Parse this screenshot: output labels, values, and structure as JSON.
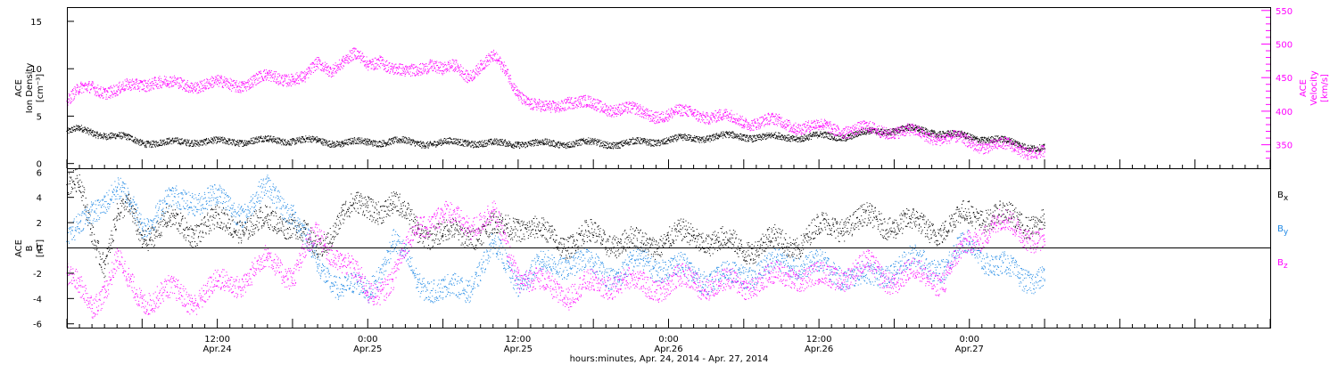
{
  "colors": {
    "black": "#000000",
    "magenta": "#ff00ff",
    "blue": "#1e88e5"
  },
  "xaxis": {
    "title": "hours:minutes, Apr. 24, 2014 - Apr. 27, 2014",
    "range_hours": [
      0,
      96
    ],
    "ticks": [
      {
        "hour": 12,
        "time": "12:00",
        "date": "Apr.24"
      },
      {
        "hour": 24,
        "time": "0:00",
        "date": "Apr.25"
      },
      {
        "hour": 36,
        "time": "12:00",
        "date": "Apr.25"
      },
      {
        "hour": 48,
        "time": "0:00",
        "date": "Apr.26"
      },
      {
        "hour": 60,
        "time": "12:00",
        "date": "Apr.26"
      },
      {
        "hour": 72,
        "time": "0:00",
        "date": "Apr.27"
      }
    ]
  },
  "chart_data": [
    {
      "type": "scatter",
      "panel": "top",
      "ylabel_left": [
        "ACE",
        "Ion Density",
        "[cm⁻³]"
      ],
      "ylabel_right": [
        "ACE",
        "Velocity",
        "[km/s]"
      ],
      "ylim_left": [
        -0.5,
        16.5
      ],
      "ylim_right": [
        315,
        555
      ],
      "yticks_left": [
        "0",
        "5",
        "10",
        "15"
      ],
      "yticks_right": [
        "350",
        "400",
        "450",
        "500",
        "550"
      ],
      "yticks_left_values": [
        0,
        5,
        10,
        15
      ],
      "yticks_right_values": [
        350,
        400,
        450,
        500,
        550
      ],
      "series": [
        {
          "axis": "left",
          "color": "#000000",
          "x": [
            0,
            1,
            2,
            3,
            4,
            5,
            6,
            8,
            10,
            12,
            14,
            16,
            18,
            20,
            22,
            24,
            26,
            28,
            30,
            32,
            34,
            36,
            38,
            40,
            42,
            44,
            46,
            48,
            50,
            52,
            54,
            56,
            58,
            60,
            62,
            64,
            66,
            67,
            68,
            69,
            70,
            71,
            72,
            73,
            74,
            75,
            76,
            77,
            78
          ],
          "y": [
            3.4,
            3.6,
            3.3,
            3.1,
            2.9,
            2.6,
            2.3,
            2.2,
            2.4,
            2.3,
            2.4,
            2.5,
            2.5,
            2.4,
            2.2,
            2.3,
            2.4,
            2.2,
            2.2,
            2.3,
            2.1,
            2.2,
            2.1,
            2.2,
            2.2,
            2.1,
            2.3,
            2.5,
            2.7,
            2.9,
            2.9,
            2.8,
            2.8,
            2.9,
            2.9,
            3.3,
            3.6,
            3.7,
            3.5,
            3.4,
            3.2,
            3.0,
            2.8,
            2.7,
            2.6,
            2.3,
            2.1,
            1.8,
            1.6
          ]
        },
        {
          "axis": "right",
          "color": "#ff00ff",
          "x": [
            0,
            1,
            2,
            3,
            4,
            5,
            6,
            7,
            8,
            10,
            12,
            14,
            16,
            18,
            19,
            20,
            21,
            22,
            23,
            24,
            25,
            26,
            27,
            28,
            29,
            30,
            31,
            32,
            33,
            34,
            35,
            36,
            37,
            38,
            39,
            40,
            41,
            42,
            44,
            46,
            48,
            50,
            52,
            54,
            56,
            58,
            60,
            62,
            64,
            66,
            68,
            70,
            72,
            74,
            76,
            78
          ],
          "y": [
            415,
            430,
            438,
            432,
            430,
            436,
            443,
            446,
            440,
            441,
            440,
            442,
            450,
            452,
            448,
            470,
            465,
            475,
            482,
            470,
            480,
            462,
            455,
            465,
            473,
            460,
            465,
            455,
            470,
            478,
            460,
            430,
            410,
            402,
            408,
            418,
            412,
            408,
            406,
            396,
            396,
            398,
            392,
            386,
            385,
            380,
            376,
            374,
            372,
            372,
            366,
            362,
            353,
            350,
            344,
            339
          ]
        }
      ]
    },
    {
      "type": "scatter",
      "panel": "bottom",
      "ylabel": [
        "ACE",
        "B",
        "[nT]"
      ],
      "ylim": [
        -6.3,
        6.3
      ],
      "yticks": [
        "-6",
        "-4",
        "-2",
        "0",
        "2",
        "4",
        "6"
      ],
      "ytick_values": [
        -6,
        -4,
        -2,
        0,
        2,
        4,
        6
      ],
      "legend": [
        {
          "name": "Bx",
          "label": "B",
          "sub": "x",
          "color": "#000000"
        },
        {
          "name": "By",
          "label": "B",
          "sub": "y",
          "color": "#1e88e5"
        },
        {
          "name": "Bz",
          "label": "B",
          "sub": "z",
          "color": "#ff00ff"
        }
      ],
      "series": [
        {
          "name": "Bx",
          "color": "#000000",
          "x": [
            0,
            1,
            2,
            3,
            4,
            5,
            6,
            8,
            10,
            12,
            14,
            16,
            18,
            20,
            22,
            24,
            26,
            28,
            30,
            32,
            34,
            36,
            38,
            40,
            42,
            44,
            46,
            48,
            50,
            52,
            54,
            56,
            58,
            60,
            62,
            64,
            66,
            68,
            70,
            72,
            74,
            76,
            78
          ],
          "y": [
            5.0,
            4.8,
            1.2,
            -1.0,
            2.5,
            3.0,
            1.0,
            2.0,
            1.5,
            2.0,
            1.8,
            2.0,
            2.2,
            -0.5,
            3.0,
            3.2,
            3.5,
            1.5,
            1.0,
            1.2,
            1.5,
            2.0,
            1.0,
            0.5,
            1.0,
            0.5,
            0.3,
            0.8,
            1.0,
            0.5,
            0.0,
            0.5,
            0.3,
            1.5,
            2.0,
            2.2,
            2.0,
            1.8,
            1.5,
            2.8,
            2.5,
            2.2,
            2.0
          ]
        },
        {
          "name": "By",
          "color": "#1e88e5",
          "x": [
            0,
            1,
            2,
            3,
            4,
            5,
            6,
            8,
            10,
            12,
            14,
            16,
            18,
            20,
            22,
            24,
            26,
            28,
            30,
            32,
            34,
            36,
            38,
            40,
            42,
            44,
            46,
            48,
            50,
            52,
            54,
            56,
            58,
            60,
            62,
            64,
            66,
            68,
            70,
            72,
            74,
            76,
            78
          ],
          "y": [
            0.5,
            1.5,
            3.0,
            4.0,
            4.5,
            3.5,
            2.0,
            3.5,
            4.0,
            3.8,
            3.0,
            4.5,
            3.0,
            -1.5,
            -3.0,
            -3.5,
            0.5,
            -2.5,
            -3.5,
            -3.0,
            0.0,
            -2.5,
            -1.5,
            -1.0,
            -1.5,
            -2.0,
            -1.0,
            -1.5,
            -2.0,
            -2.5,
            -2.0,
            -1.5,
            -1.0,
            -1.5,
            -2.0,
            -2.5,
            -1.5,
            -1.0,
            -1.5,
            0.5,
            -1.5,
            -2.0,
            -2.5
          ]
        },
        {
          "name": "Bz",
          "color": "#ff00ff",
          "x": [
            0,
            1,
            2,
            3,
            4,
            5,
            6,
            8,
            10,
            12,
            14,
            16,
            18,
            20,
            22,
            24,
            26,
            28,
            30,
            32,
            34,
            36,
            38,
            40,
            42,
            44,
            46,
            48,
            50,
            52,
            54,
            56,
            58,
            60,
            62,
            64,
            66,
            68,
            70,
            72,
            74,
            76,
            78
          ],
          "y": [
            -2.0,
            -3.5,
            -4.5,
            -3.0,
            -1.0,
            -3.0,
            -4.0,
            -3.5,
            -4.0,
            -3.0,
            -2.5,
            -1.0,
            -2.0,
            1.0,
            -1.0,
            -3.5,
            -2.5,
            2.0,
            2.5,
            2.0,
            2.5,
            -2.0,
            -3.0,
            -3.5,
            -3.0,
            -2.5,
            -3.0,
            -2.8,
            -2.5,
            -3.0,
            -2.8,
            -2.5,
            -2.0,
            -2.5,
            -2.0,
            -1.5,
            -2.5,
            -2.0,
            -2.5,
            0.5,
            2.0,
            1.5,
            0.5
          ]
        }
      ]
    }
  ]
}
